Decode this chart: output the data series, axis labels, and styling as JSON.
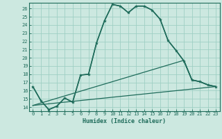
{
  "xlabel": "Humidex (Indice chaleur)",
  "ylabel": "",
  "background_color": "#cce8e0",
  "grid_color": "#9fcfc4",
  "line_color": "#1e6b5a",
  "xlim": [
    -0.5,
    23.5
  ],
  "ylim": [
    13.5,
    26.7
  ],
  "xticks": [
    0,
    1,
    2,
    3,
    4,
    5,
    6,
    7,
    8,
    9,
    10,
    11,
    12,
    13,
    14,
    15,
    16,
    17,
    18,
    19,
    20,
    21,
    22,
    23
  ],
  "yticks": [
    14,
    15,
    16,
    17,
    18,
    19,
    20,
    21,
    22,
    23,
    24,
    25,
    26
  ],
  "lines": [
    {
      "x": [
        0,
        1,
        2,
        3,
        4,
        5,
        6,
        7,
        8,
        9,
        10,
        11,
        12,
        13,
        14,
        15,
        16,
        17,
        18,
        19,
        20,
        21,
        22,
        23
      ],
      "y": [
        16.5,
        14.8,
        13.7,
        14.1,
        15.1,
        14.6,
        17.9,
        18.0,
        21.8,
        24.5,
        26.5,
        26.3,
        25.5,
        26.3,
        26.3,
        25.8,
        24.7,
        22.1,
        20.9,
        19.6,
        17.3,
        17.1,
        16.7,
        16.5
      ],
      "marker": true,
      "linewidth": 1.2,
      "markersize": 3.0
    },
    {
      "x": [
        0,
        1,
        2,
        3,
        4,
        5,
        6,
        7,
        8,
        9,
        10,
        11,
        12,
        13,
        14,
        15,
        16,
        17,
        18,
        19,
        20,
        21,
        22,
        23
      ],
      "y": [
        16.5,
        14.8,
        13.7,
        14.1,
        15.1,
        14.6,
        17.9,
        18.0,
        21.8,
        24.5,
        26.5,
        26.3,
        25.5,
        26.3,
        26.3,
        25.8,
        24.7,
        22.1,
        20.9,
        19.6,
        17.3,
        17.1,
        16.7,
        16.5
      ],
      "marker": false,
      "linewidth": 0.9,
      "markersize": 0
    },
    {
      "x": [
        0,
        19,
        20,
        21,
        22,
        23
      ],
      "y": [
        14.2,
        19.7,
        17.3,
        17.1,
        16.7,
        16.5
      ],
      "marker": false,
      "linewidth": 0.9,
      "markersize": 0
    },
    {
      "x": [
        0,
        23
      ],
      "y": [
        14.2,
        16.5
      ],
      "marker": false,
      "linewidth": 0.9,
      "markersize": 0
    }
  ]
}
